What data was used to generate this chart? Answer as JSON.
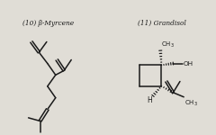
{
  "background_color": "#e0ddd6",
  "line_color": "#1a1a1a",
  "text_color": "#1a1a1a",
  "title1": "(10) β-Myrcene",
  "title2": "(11) Grandisol",
  "fig_width": 2.4,
  "fig_height": 1.5,
  "dpi": 100
}
